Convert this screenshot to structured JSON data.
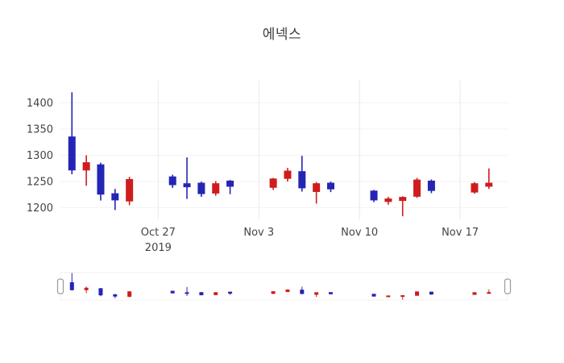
{
  "chart_data": {
    "type": "candlestick",
    "title": "에넥스",
    "increasing_color": "#cf1d1d",
    "decreasing_color": "#2525b5",
    "background_color": "#ffffff",
    "grid_color": "#e8e8e8",
    "axis_text_color": "#444444",
    "ylabel": "",
    "xlabel": "",
    "ylim": [
      1178,
      1442
    ],
    "y_ticks": [
      1200,
      1250,
      1300,
      1350,
      1400
    ],
    "x_ticks": [
      {
        "date": "2019-10-27",
        "label": "Oct 27",
        "sublabel": "2019"
      },
      {
        "date": "2019-11-03",
        "label": "Nov 3",
        "sublabel": ""
      },
      {
        "date": "2019-11-10",
        "label": "Nov 10",
        "sublabel": ""
      },
      {
        "date": "2019-11-17",
        "label": "Nov 17",
        "sublabel": ""
      }
    ],
    "rangeslider": true,
    "candles": [
      {
        "date": "2019-10-21",
        "open": 1335,
        "high": 1420,
        "low": 1264,
        "close": 1272
      },
      {
        "date": "2019-10-22",
        "open": 1272,
        "high": 1300,
        "low": 1242,
        "close": 1286
      },
      {
        "date": "2019-10-23",
        "open": 1282,
        "high": 1286,
        "low": 1214,
        "close": 1226
      },
      {
        "date": "2019-10-24",
        "open": 1227,
        "high": 1236,
        "low": 1196,
        "close": 1215
      },
      {
        "date": "2019-10-25",
        "open": 1213,
        "high": 1259,
        "low": 1205,
        "close": 1254
      },
      {
        "date": "2019-10-28",
        "open": 1259,
        "high": 1263,
        "low": 1238,
        "close": 1244
      },
      {
        "date": "2019-10-29",
        "open": 1246,
        "high": 1296,
        "low": 1217,
        "close": 1240
      },
      {
        "date": "2019-10-30",
        "open": 1247,
        "high": 1250,
        "low": 1221,
        "close": 1227
      },
      {
        "date": "2019-10-31",
        "open": 1228,
        "high": 1251,
        "low": 1223,
        "close": 1246
      },
      {
        "date": "2019-11-01",
        "open": 1251,
        "high": 1253,
        "low": 1226,
        "close": 1241
      },
      {
        "date": "2019-11-04",
        "open": 1239,
        "high": 1257,
        "low": 1234,
        "close": 1255
      },
      {
        "date": "2019-11-05",
        "open": 1256,
        "high": 1276,
        "low": 1250,
        "close": 1270
      },
      {
        "date": "2019-11-06",
        "open": 1269,
        "high": 1299,
        "low": 1231,
        "close": 1238
      },
      {
        "date": "2019-11-07",
        "open": 1231,
        "high": 1249,
        "low": 1208,
        "close": 1246
      },
      {
        "date": "2019-11-08",
        "open": 1247,
        "high": 1250,
        "low": 1230,
        "close": 1236
      },
      {
        "date": "2019-11-11",
        "open": 1232,
        "high": 1234,
        "low": 1211,
        "close": 1215
      },
      {
        "date": "2019-11-12",
        "open": 1212,
        "high": 1221,
        "low": 1206,
        "close": 1217
      },
      {
        "date": "2019-11-13",
        "open": 1214,
        "high": 1222,
        "low": 1184,
        "close": 1220
      },
      {
        "date": "2019-11-14",
        "open": 1222,
        "high": 1257,
        "low": 1219,
        "close": 1253
      },
      {
        "date": "2019-11-15",
        "open": 1251,
        "high": 1254,
        "low": 1228,
        "close": 1233
      },
      {
        "date": "2019-11-18",
        "open": 1230,
        "high": 1249,
        "low": 1227,
        "close": 1246
      },
      {
        "date": "2019-11-19",
        "open": 1241,
        "high": 1275,
        "low": 1236,
        "close": 1247
      }
    ]
  }
}
